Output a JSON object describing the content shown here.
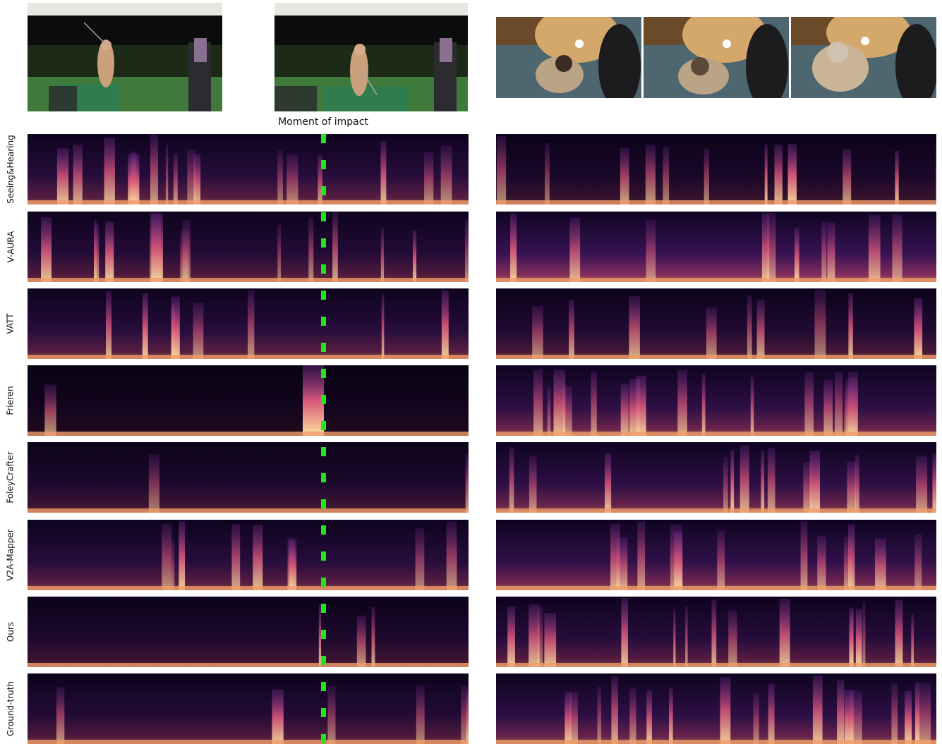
{
  "figure": {
    "impact_caption": "Moment of impact",
    "rows": [
      {
        "label": "Seeing&Hearing"
      },
      {
        "label": "V-AURA"
      },
      {
        "label": "VATT"
      },
      {
        "label": "Frieren"
      },
      {
        "label": "FoleyCrafter"
      },
      {
        "label": "V2A-Mapper"
      },
      {
        "label": "Ours"
      },
      {
        "label": "Ground-truth"
      }
    ],
    "left_video": {
      "description_frames": [
        "golf-swing-backswing",
        "golf-swing-follow-through"
      ]
    },
    "right_video": {
      "description_frames": [
        "dog-frame-1",
        "dog-frame-2",
        "dog-frame-3"
      ]
    },
    "colors": {
      "marker": "#22e61c",
      "colormap_low": "#0a0212",
      "colormap_high": "#fde3a0"
    }
  }
}
